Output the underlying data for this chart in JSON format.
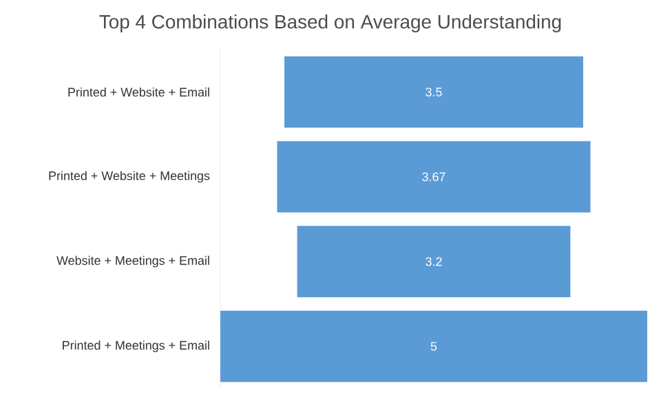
{
  "chart_data": {
    "type": "other",
    "title": "Top 4 Combinations Based on Average Understanding",
    "categories": [
      "Printed + Website + Email",
      "Printed + Website + Meetings",
      "Website + Meetings + Email",
      "Printed + Meetings + Email"
    ],
    "values": [
      3.5,
      3.67,
      3.2,
      5
    ],
    "color": "#5b9bd5",
    "data_labels": true
  }
}
